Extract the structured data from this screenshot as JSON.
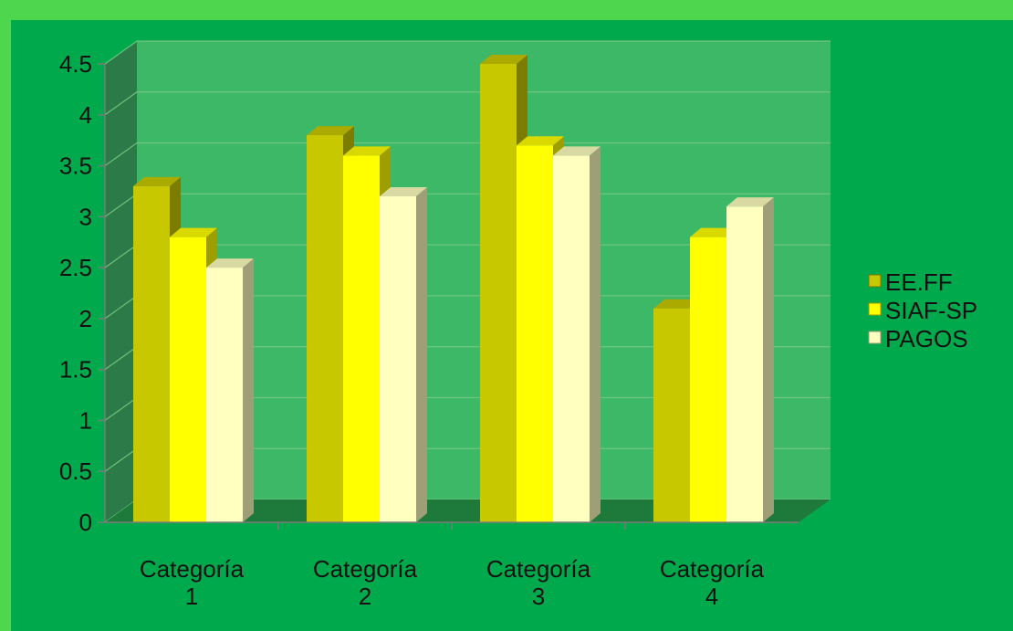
{
  "chart_data": {
    "type": "bar",
    "style": "3d-clustered",
    "categories": [
      [
        "Categoría",
        "1"
      ],
      [
        "Categoría",
        "2"
      ],
      [
        "Categoría",
        "3"
      ],
      [
        "Categoría",
        "4"
      ]
    ],
    "series": [
      {
        "name": "EE.FF",
        "values": [
          3.3,
          3.8,
          4.5,
          2.1
        ],
        "color": "#c8c800"
      },
      {
        "name": "SIAF-SP",
        "values": [
          2.8,
          3.6,
          3.7,
          2.8
        ],
        "color": "#ffff00"
      },
      {
        "name": "PAGOS",
        "values": [
          2.5,
          3.2,
          3.6,
          3.1
        ],
        "color": "#ffffc0"
      }
    ],
    "yticks": [
      "0",
      "0.5",
      "1",
      "1.5",
      "2",
      "2.5",
      "3",
      "3.5",
      "4",
      "4.5"
    ],
    "ylim": [
      0,
      4.5
    ],
    "grid": true,
    "legend": "right",
    "title": "",
    "xlabel": "",
    "ylabel": "",
    "colors": {
      "background_outer": "#4fd64f",
      "background_inner": "#00aa4c",
      "wall": "#3cb867",
      "side_wall": "#2c7a48",
      "floor": "#1e7a3a"
    }
  }
}
